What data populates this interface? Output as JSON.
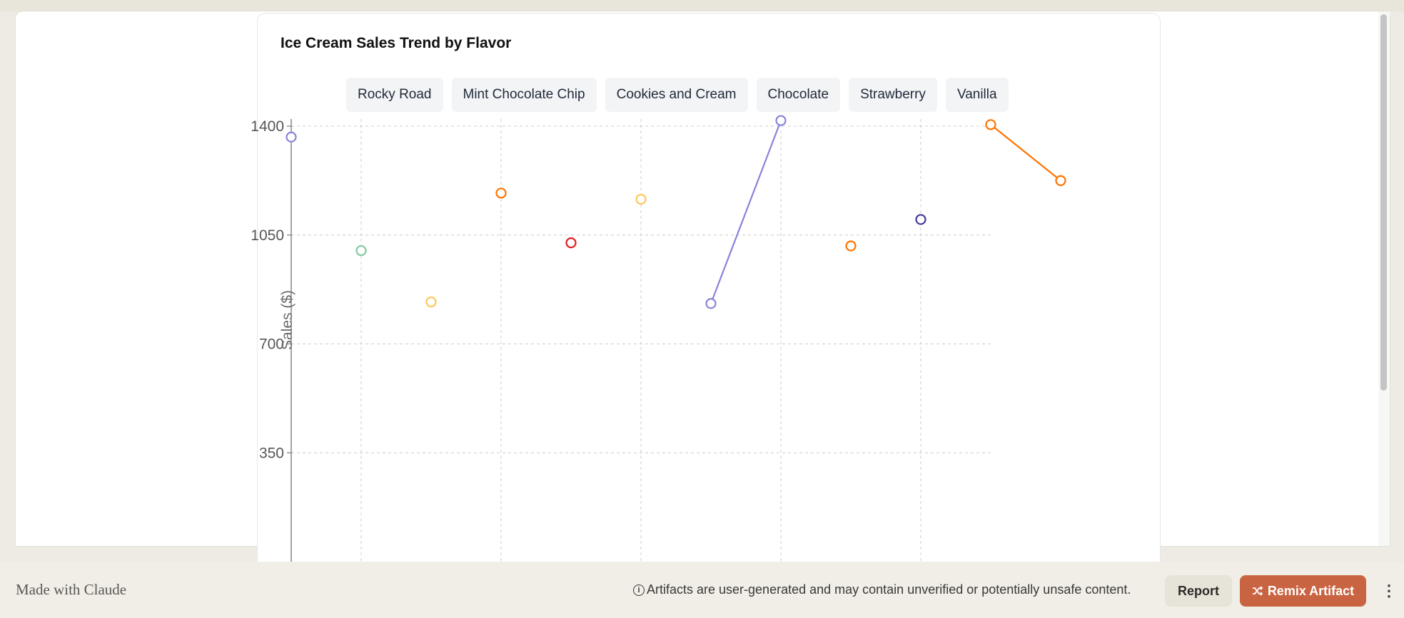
{
  "card": {
    "title": "Ice Cream Sales Trend by Flavor"
  },
  "legend": [
    "Rocky Road",
    "Mint Chocolate Chip",
    "Cookies and Cream",
    "Chocolate",
    "Strawberry",
    "Vanilla"
  ],
  "chart_data": {
    "type": "line",
    "title": "Ice Cream Sales Trend by Flavor",
    "ylabel": "Sales ($)",
    "xlabel": "",
    "ylim": [
      0,
      1400
    ],
    "yticks": [
      350,
      700,
      1050,
      1400
    ],
    "grid": true,
    "x_positions": 11,
    "points": [
      {
        "x": 0,
        "y": 1365,
        "color": "#8884d8"
      },
      {
        "x": 1,
        "y": 1000,
        "color": "#82ca9d"
      },
      {
        "x": 2,
        "y": 835,
        "color": "#ffc658"
      },
      {
        "x": 3,
        "y": 1185,
        "color": "#ff7300"
      },
      {
        "x": 4,
        "y": 1025,
        "color": "#e31a1c"
      },
      {
        "x": 5,
        "y": 1165,
        "color": "#ffc658"
      },
      {
        "x": 6,
        "y": 830,
        "color": "#8884d8"
      },
      {
        "x": 7,
        "y": 1418,
        "color": "#8884d8"
      },
      {
        "x": 8,
        "y": 1015,
        "color": "#ff7300"
      },
      {
        "x": 9,
        "y": 1100,
        "color": "#3f3a9e"
      },
      {
        "x": 10,
        "y": 1405,
        "color": "#ff7300"
      },
      {
        "x": 11,
        "y": 1225,
        "color": "#ff7300"
      }
    ],
    "segments": [
      {
        "from": 6,
        "to": 7,
        "color": "#8884d8"
      },
      {
        "from": 10,
        "to": 11,
        "color": "#ff7300"
      }
    ]
  },
  "footer": {
    "made_with": "Made with Claude",
    "notice": "Artifacts are user-generated and may contain unverified or potentially unsafe content.",
    "report_label": "Report",
    "remix_label": "Remix Artifact",
    "more_label": "⋮"
  },
  "colors": {
    "accent": "#c96442",
    "background": "#edebe3"
  }
}
